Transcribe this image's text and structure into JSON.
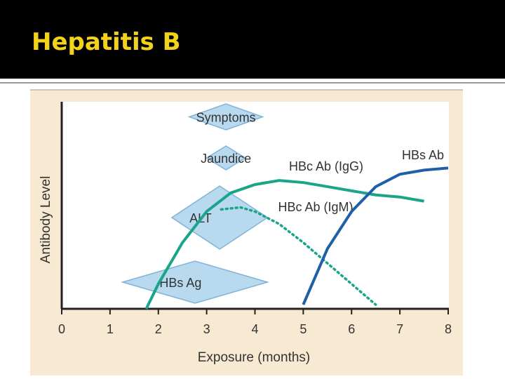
{
  "title": "Hepatitis B",
  "chart_data": {
    "type": "line",
    "xlabel": "Exposure (months)",
    "ylabel": "Antibody Level",
    "xlim": [
      0,
      8
    ],
    "xticks": [
      0,
      1,
      2,
      3,
      4,
      5,
      6,
      7,
      8
    ],
    "ylim": [
      0,
      10
    ],
    "series": [
      {
        "name": "HBc Ab (IgG)",
        "color": "#1aa58a",
        "dash": false,
        "x": [
          1.75,
          2,
          2.5,
          3,
          3.5,
          4,
          4.5,
          5,
          5.5,
          6,
          6.5,
          7,
          7.5
        ],
        "values": [
          0,
          1.2,
          3.2,
          4.7,
          5.6,
          6.0,
          6.2,
          6.1,
          5.9,
          5.7,
          5.5,
          5.4,
          5.2
        ]
      },
      {
        "name": "HBc Ab (IgM)",
        "color": "#1aa58a",
        "dash": true,
        "x": [
          3.3,
          3.7,
          4,
          4.5,
          5,
          5.5,
          6,
          6.5
        ],
        "values": [
          4.8,
          4.9,
          4.7,
          4.1,
          3.2,
          2.2,
          1.2,
          0.2
        ]
      },
      {
        "name": "HBs Ab",
        "color": "#1f5fa8",
        "dash": false,
        "x": [
          5,
          5.5,
          6,
          6.5,
          7,
          7.5,
          8
        ],
        "values": [
          0.2,
          2.9,
          4.7,
          5.9,
          6.5,
          6.7,
          6.8
        ]
      }
    ],
    "ranges": [
      {
        "label": "Symptoms",
        "start": 2.64,
        "end": 4.16
      },
      {
        "label": "Jaundice",
        "start": 3.0,
        "end": 3.8
      },
      {
        "label": "ALT",
        "start": 2.28,
        "end": 4.26
      },
      {
        "label": "HBs Ag",
        "start": 1.26,
        "end": 4.26
      }
    ]
  }
}
